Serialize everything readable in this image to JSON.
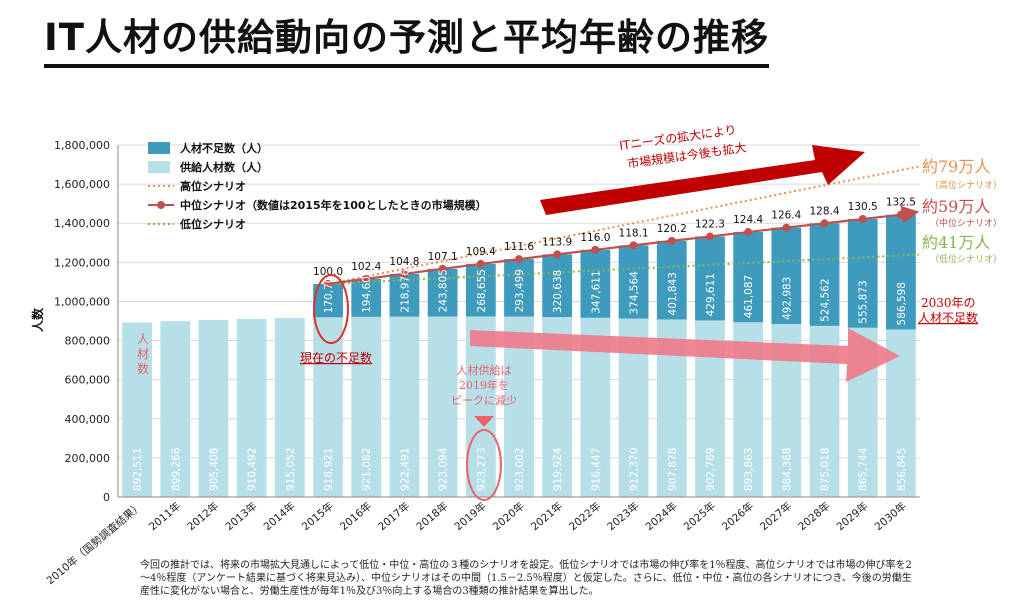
{
  "page": {
    "title": "IT人材の供給動向の予測と平均年齢の推移",
    "footnote": "今回の推計では、将来の市場拡大見通しによって低位・中位・高位の３種のシナリオを設定。低位シナリオでは市場の伸び率を1％程度、高位シナリオでは市場の伸び率を2～4％程度（アンケート結果に基づく将来見込み）、中位シナリオはその中間（1.5－2.5％程度）と仮定した。さらに、低位・中位・高位の各シナリオにつき、今後の労働生産性に変化がない場合と、労働生産性が毎年1％及び3％向上する場合の3種類の推計結果を算出した。"
  },
  "colors": {
    "supply": "#b7dfe8",
    "shortage": "#3f9bbd",
    "high": "#e8904a",
    "mid": "#c0504d",
    "low": "#8db34e",
    "accent_red": "#c00000"
  },
  "chart_data": {
    "type": "bar",
    "ylabel": "人数",
    "ylim": [
      0,
      1800000
    ],
    "yticks": [
      "0",
      "200,000",
      "400,000",
      "600,000",
      "800,000",
      "1,000,000",
      "1,200,000",
      "1,400,000",
      "1,600,000",
      "1,800,000"
    ],
    "ytick_values": [
      0,
      200000,
      400000,
      600000,
      800000,
      1000000,
      1200000,
      1400000,
      1600000,
      1800000
    ],
    "categories": [
      "2010年（国勢調査結果）",
      "2011年",
      "2012年",
      "2013年",
      "2014年",
      "2015年",
      "2016年",
      "2017年",
      "2018年",
      "2019年",
      "2020年",
      "2021年",
      "2022年",
      "2023年",
      "2024年",
      "2025年",
      "2026年",
      "2027年",
      "2028年",
      "2029年",
      "2030年"
    ],
    "supply": [
      892511,
      899266,
      905408,
      910492,
      915052,
      918921,
      921082,
      922491,
      923094,
      923273,
      923002,
      919924,
      916447,
      912370,
      907878,
      902789,
      893863,
      884368,
      875018,
      865744,
      856845
    ],
    "supply_labels": [
      "892,511",
      "899,266",
      "905,408",
      "910,492",
      "915,052",
      "918,921",
      "921,082",
      "922,491",
      "923,094",
      "923,273",
      "923,002",
      "919,924",
      "916,447",
      "912,370",
      "907,878",
      "902,789",
      "893,863",
      "884,368",
      "875,018",
      "865,744",
      "856,845"
    ],
    "shortage": [
      null,
      null,
      null,
      null,
      null,
      170700,
      194608,
      218976,
      243805,
      268655,
      293499,
      320638,
      347611,
      374564,
      401843,
      429611,
      461087,
      492983,
      524562,
      555873,
      586598
    ],
    "shortage_labels": [
      "",
      "",
      "",
      "",
      "",
      "170,700",
      "194,608",
      "218,976",
      "243,805",
      "268,655",
      "293,499",
      "320,638",
      "347,611",
      "374,564",
      "401,843",
      "429,611",
      "461,087",
      "492,983",
      "524,562",
      "555,873",
      "586,598"
    ],
    "mid_index": [
      null,
      null,
      null,
      null,
      null,
      100.0,
      102.4,
      104.8,
      107.1,
      109.4,
      111.6,
      113.9,
      116.0,
      118.1,
      120.2,
      122.3,
      124.4,
      126.4,
      128.4,
      130.5,
      132.5
    ],
    "mid_index_labels": [
      "",
      "",
      "",
      "",
      "",
      "100.0",
      "102.4",
      "104.8",
      "107.1",
      "109.4",
      "111.6",
      "113.9",
      "116.0",
      "118.1",
      "120.2",
      "122.3",
      "124.4",
      "126.4",
      "128.4",
      "130.5",
      "132.5"
    ],
    "high_start": 1089621,
    "high_end": 1690000,
    "low_start": 1089621,
    "low_end": 1240000,
    "legend": [
      {
        "key": "shortage",
        "label": "人材不足数（人）"
      },
      {
        "key": "supply",
        "label": "供給人材数（人）"
      },
      {
        "key": "high",
        "label": "高位シナリオ"
      },
      {
        "key": "mid",
        "label": "中位シナリオ（数値は2015年を100としたときの市場規模）"
      },
      {
        "key": "low",
        "label": "低位シナリオ"
      }
    ],
    "legend_position": "top-left"
  },
  "annotations": {
    "market_growth_1": "ITニーズの拡大により",
    "market_growth_2": "市場規模は今後も拡大",
    "high_end_main": "約79万人",
    "high_end_sub": "（高位シナリオ）",
    "mid_end_main": "約59万人",
    "mid_end_sub": "（中位シナリオ）",
    "low_end_main": "約41万人",
    "low_end_sub": "（低位シナリオ）",
    "shortage_2030_1": "2030年の",
    "shortage_2030_2": "人材不足数",
    "current_shortage": "現在の不足数",
    "peak_1": "人材供給は",
    "peak_2": "2019年を",
    "peak_3": "ピークに減少",
    "supply_label_1": "人",
    "supply_label_2": "材",
    "supply_label_3": "数"
  }
}
